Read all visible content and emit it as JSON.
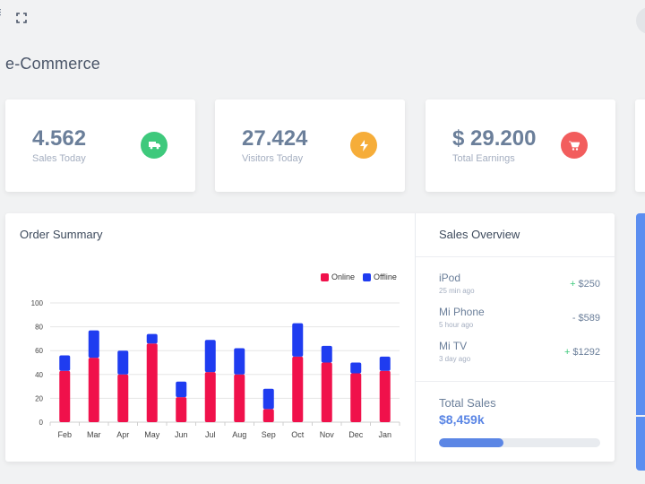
{
  "page": {
    "title": "e-Commerce"
  },
  "icons": {
    "menu": "menu-icon",
    "fullscreen": "fullscreen-icon",
    "truck": "truck-icon",
    "bolt": "bolt-icon",
    "cart": "cart-icon"
  },
  "stats": [
    {
      "value": "4.562",
      "label": "Sales Today",
      "color": "#3ec97c",
      "icon": "truck-icon"
    },
    {
      "value": "27.424",
      "label": "Visitors Today",
      "color": "#f6ad39",
      "icon": "bolt-icon"
    },
    {
      "value": "$ 29.200",
      "label": "Total Earnings",
      "color": "#f25d5d",
      "icon": "cart-icon"
    }
  ],
  "order_summary": {
    "title": "Order Summary"
  },
  "chart_data": {
    "type": "bar",
    "stacked": true,
    "categories": [
      "Feb",
      "Mar",
      "Apr",
      "May",
      "Jun",
      "Jul",
      "Aug",
      "Sep",
      "Oct",
      "Nov",
      "Dec",
      "Jan"
    ],
    "series": [
      {
        "name": "Online",
        "color": "#f0114b",
        "values": [
          43,
          54,
          40,
          66,
          21,
          42,
          40,
          11,
          55,
          50,
          41,
          43
        ]
      },
      {
        "name": "Offline",
        "color": "#1f3cf0",
        "values": [
          13,
          23,
          20,
          8,
          13,
          27,
          22,
          17,
          28,
          14,
          9,
          12
        ]
      }
    ],
    "yticks": [
      "0",
      "20",
      "40",
      "60",
      "80",
      "100"
    ],
    "ylim": [
      0,
      100
    ],
    "legend": "top-right",
    "grid": true
  },
  "sales_overview": {
    "title": "Sales Overview",
    "items": [
      {
        "name": "iPod",
        "time": "25 min ago",
        "sign": "+",
        "amount": "$250",
        "sign_color": "#3ec97c"
      },
      {
        "name": "Mi Phone",
        "time": "5 hour ago",
        "sign": "-",
        "amount": "$589",
        "sign_color": "#6b7f9a"
      },
      {
        "name": "Mi TV",
        "time": "3 day ago",
        "sign": "+",
        "amount": "$1292",
        "sign_color": "#3ec97c"
      }
    ],
    "total_label": "Total Sales",
    "total_value": "$8,459k",
    "progress": 0.4
  }
}
